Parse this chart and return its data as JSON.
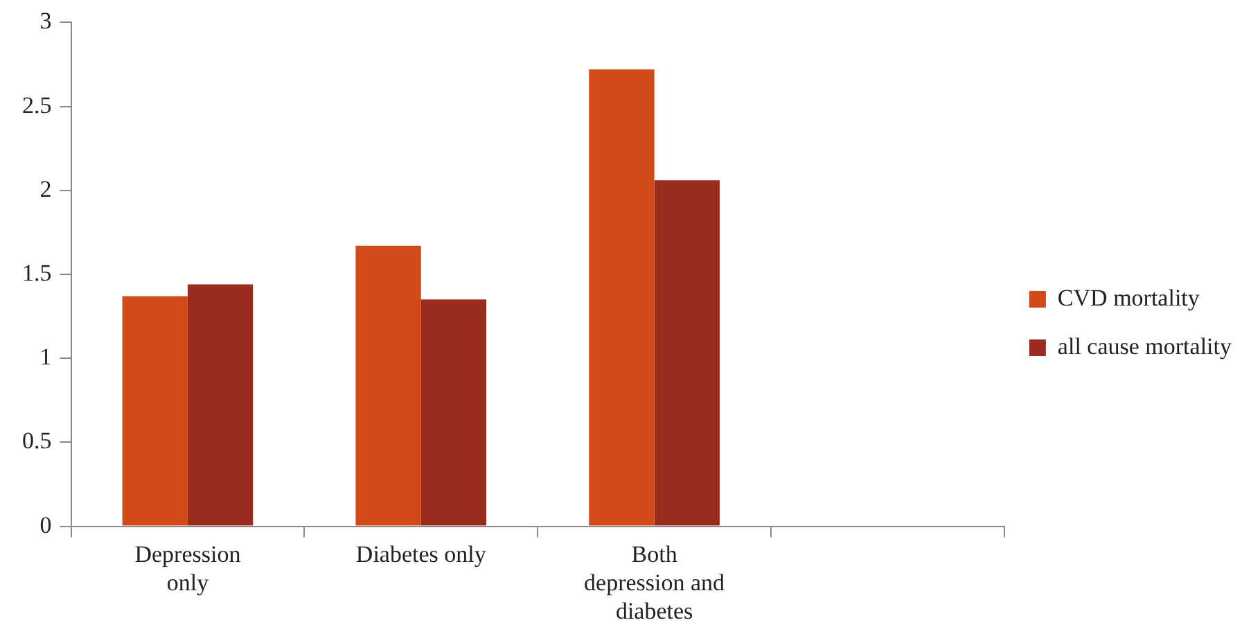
{
  "chart_data": {
    "type": "bar",
    "categories": [
      "Depression only",
      "Diabetes only",
      "Both depression and diabetes",
      null
    ],
    "series": [
      {
        "name": "CVD mortality",
        "color": "#d24a17",
        "values": [
          1.37,
          1.67,
          2.72,
          null
        ]
      },
      {
        "name": "all cause mortality",
        "color": "#9a2b1f",
        "values": [
          1.44,
          1.35,
          2.06,
          null
        ]
      }
    ],
    "ylim": [
      0,
      3
    ],
    "yticks": [
      0,
      {
        "value": 0.5,
        "label": "0.5"
      },
      1,
      {
        "value": 1.5,
        "label": "1.5"
      },
      2,
      {
        "value": 2.5,
        "label": "2.5"
      },
      3
    ],
    "grid": false,
    "legend": "right"
  }
}
